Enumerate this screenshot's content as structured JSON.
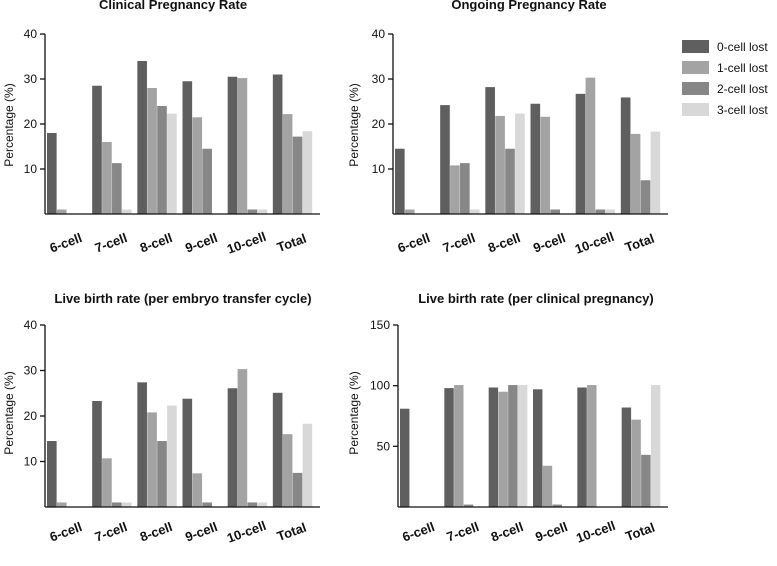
{
  "chart_data": [
    {
      "type": "bar",
      "title": "Clinical Pregnancy Rate",
      "ylabel": "Percentage (%)",
      "xlabel": "",
      "ylim": [
        0,
        40
      ],
      "yticks": [
        10,
        20,
        30,
        40
      ],
      "categories": [
        "6-cell",
        "7-cell",
        "8-cell",
        "9-cell",
        "10-cell",
        "Total"
      ],
      "series": [
        {
          "name": "0-cell lost",
          "values": [
            18,
            28.5,
            34,
            29.5,
            30.5,
            31
          ]
        },
        {
          "name": "1-cell lost",
          "values": [
            1,
            16,
            28,
            21.5,
            30.2,
            22.2
          ]
        },
        {
          "name": "2-cell lost",
          "values": [
            0,
            11.3,
            24,
            14.5,
            1,
            17.2
          ]
        },
        {
          "name": "3-cell lost",
          "values": [
            0,
            1,
            22.3,
            0,
            1,
            18.4
          ]
        }
      ]
    },
    {
      "type": "bar",
      "title": "Ongoing Pregnancy Rate",
      "ylabel": "Percentage (%)",
      "xlabel": "",
      "ylim": [
        0,
        40
      ],
      "yticks": [
        10,
        20,
        30,
        40
      ],
      "categories": [
        "6-cell",
        "7-cell",
        "8-cell",
        "9-cell",
        "10-cell",
        "Total"
      ],
      "series": [
        {
          "name": "0-cell lost",
          "values": [
            14.5,
            24.2,
            28.2,
            24.5,
            26.7,
            25.9
          ]
        },
        {
          "name": "1-cell lost",
          "values": [
            1,
            10.8,
            21.8,
            21.6,
            30.3,
            17.8
          ]
        },
        {
          "name": "2-cell lost",
          "values": [
            0,
            11.3,
            14.5,
            1,
            1,
            7.5
          ]
        },
        {
          "name": "3-cell lost",
          "values": [
            0,
            1,
            22.3,
            0,
            1,
            18.3
          ]
        }
      ]
    },
    {
      "type": "bar",
      "title": "Live birth rate (per embryo transfer cycle)",
      "ylabel": "Percentage (%)",
      "xlabel": "",
      "ylim": [
        0,
        40
      ],
      "yticks": [
        10,
        20,
        30,
        40
      ],
      "categories": [
        "6-cell",
        "7-cell",
        "8-cell",
        "9-cell",
        "10-cell",
        "Total"
      ],
      "series": [
        {
          "name": "0-cell lost",
          "values": [
            14.5,
            23.3,
            27.4,
            23.8,
            26.1,
            25.1
          ]
        },
        {
          "name": "1-cell lost",
          "values": [
            1,
            10.7,
            20.8,
            7.4,
            30.3,
            16
          ]
        },
        {
          "name": "2-cell lost",
          "values": [
            0,
            1,
            14.5,
            1,
            1,
            7.5
          ]
        },
        {
          "name": "3-cell lost",
          "values": [
            0,
            1,
            22.3,
            0,
            1,
            18.3
          ]
        }
      ]
    },
    {
      "type": "bar",
      "title": "Live birth rate (per clinical pregnancy)",
      "ylabel": "Percentage (%)",
      "xlabel": "",
      "ylim": [
        0,
        150
      ],
      "yticks": [
        50,
        100,
        150
      ],
      "categories": [
        "6-cell",
        "7-cell",
        "8-cell",
        "9-cell",
        "10-cell",
        "Total"
      ],
      "series": [
        {
          "name": "0-cell lost",
          "values": [
            81,
            98,
            98.5,
            97,
            98.5,
            82
          ]
        },
        {
          "name": "1-cell lost",
          "values": [
            0,
            100.5,
            95,
            34,
            100.5,
            72
          ]
        },
        {
          "name": "2-cell lost",
          "values": [
            0,
            2,
            100.5,
            2,
            0,
            43
          ]
        },
        {
          "name": "3-cell lost",
          "values": [
            0,
            0,
            100.5,
            0,
            0,
            100.5
          ]
        }
      ]
    }
  ],
  "legend": {
    "items": [
      {
        "label": "0-cell lost",
        "color": "#5f5f5f"
      },
      {
        "label": "1-cell lost",
        "color": "#a3a3a3"
      },
      {
        "label": "2-cell lost",
        "color": "#878787"
      },
      {
        "label": "3-cell lost",
        "color": "#d8d8d8"
      }
    ]
  }
}
